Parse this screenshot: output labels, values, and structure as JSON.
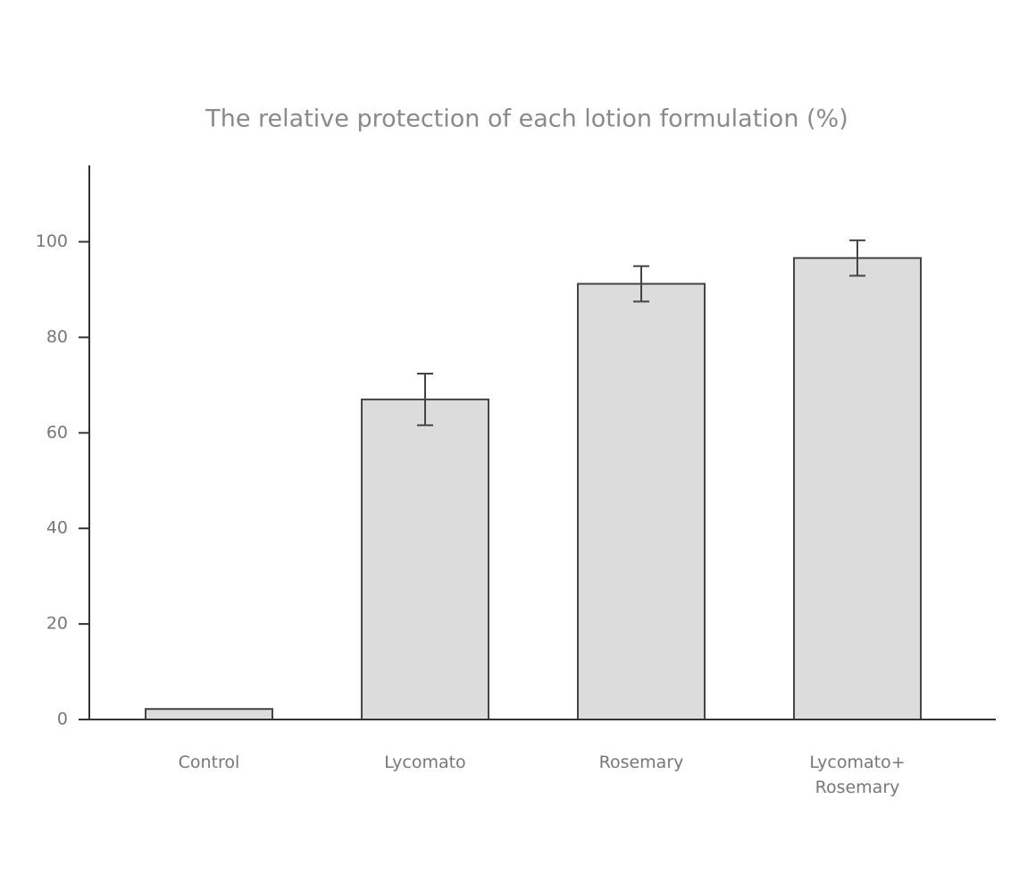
{
  "chart_data": {
    "type": "bar",
    "title": "The relative protection of each lotion formulation (%)",
    "categories": [
      "Control",
      "Lycomato",
      "Rosemary",
      "Lycomato+ Rosemary"
    ],
    "values": [
      2.2,
      67.0,
      91.2,
      96.6
    ],
    "errors": [
      null,
      5.4,
      3.7,
      3.7
    ],
    "color": "#dcdcdc",
    "ylim": [
      0,
      116
    ],
    "yticks": [
      0,
      20,
      40,
      60,
      80,
      100
    ]
  }
}
